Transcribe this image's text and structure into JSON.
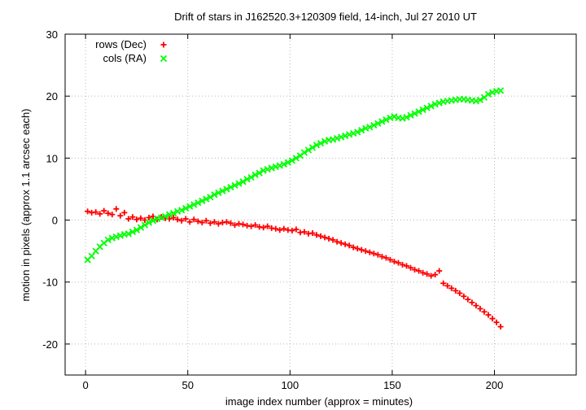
{
  "chart_data": {
    "type": "scatter",
    "title": "Drift of stars in J162520.3+120309 field, 14-inch, Jul 27 2010 UT",
    "xlabel": "image index number (approx = minutes)",
    "ylabel": "motion in pixels (approx 1.1 arcsec each)",
    "xlim": [
      -10,
      240
    ],
    "ylim": [
      -25,
      30
    ],
    "xticks": [
      0,
      50,
      100,
      150,
      200
    ],
    "yticks": [
      -20,
      -10,
      0,
      10,
      20,
      30
    ],
    "grid": true,
    "legend_position": "top-left",
    "series": [
      {
        "name": "rows (Dec)",
        "color": "#ff0000",
        "marker": "plus",
        "points": [
          [
            1,
            1.4
          ],
          [
            3,
            1.2
          ],
          [
            5,
            1.3
          ],
          [
            7,
            1.0
          ],
          [
            9,
            1.5
          ],
          [
            11,
            1.1
          ],
          [
            13,
            0.9
          ],
          [
            15,
            1.8
          ],
          [
            17,
            0.7
          ],
          [
            19,
            1.2
          ],
          [
            21,
            0.2
          ],
          [
            23,
            0.5
          ],
          [
            25,
            0.1
          ],
          [
            27,
            0.3
          ],
          [
            29,
            0.0
          ],
          [
            31,
            0.4
          ],
          [
            33,
            0.6
          ],
          [
            35,
            0.1
          ],
          [
            37,
            0.5
          ],
          [
            39,
            0.3
          ],
          [
            41,
            0.2
          ],
          [
            43,
            0.4
          ],
          [
            45,
            0.1
          ],
          [
            47,
            -0.1
          ],
          [
            49,
            0.2
          ],
          [
            51,
            -0.3
          ],
          [
            53,
            0.1
          ],
          [
            55,
            -0.2
          ],
          [
            57,
            -0.4
          ],
          [
            59,
            -0.1
          ],
          [
            61,
            -0.5
          ],
          [
            63,
            -0.3
          ],
          [
            65,
            -0.6
          ],
          [
            67,
            -0.4
          ],
          [
            69,
            -0.3
          ],
          [
            71,
            -0.5
          ],
          [
            73,
            -0.8
          ],
          [
            75,
            -0.6
          ],
          [
            77,
            -0.7
          ],
          [
            79,
            -0.9
          ],
          [
            81,
            -1.0
          ],
          [
            83,
            -0.8
          ],
          [
            85,
            -1.1
          ],
          [
            87,
            -1.2
          ],
          [
            89,
            -1.0
          ],
          [
            91,
            -1.3
          ],
          [
            93,
            -1.4
          ],
          [
            95,
            -1.6
          ],
          [
            97,
            -1.4
          ],
          [
            99,
            -1.6
          ],
          [
            101,
            -1.7
          ],
          [
            103,
            -1.5
          ],
          [
            105,
            -2.0
          ],
          [
            107,
            -1.9
          ],
          [
            109,
            -2.2
          ],
          [
            111,
            -2.1
          ],
          [
            113,
            -2.4
          ],
          [
            115,
            -2.6
          ],
          [
            117,
            -2.8
          ],
          [
            119,
            -3.0
          ],
          [
            121,
            -3.2
          ],
          [
            123,
            -3.5
          ],
          [
            125,
            -3.7
          ],
          [
            127,
            -3.9
          ],
          [
            129,
            -4.1
          ],
          [
            131,
            -4.4
          ],
          [
            133,
            -4.6
          ],
          [
            135,
            -4.8
          ],
          [
            137,
            -5.0
          ],
          [
            139,
            -5.2
          ],
          [
            141,
            -5.4
          ],
          [
            143,
            -5.6
          ],
          [
            145,
            -5.9
          ],
          [
            147,
            -6.1
          ],
          [
            149,
            -6.4
          ],
          [
            151,
            -6.7
          ],
          [
            153,
            -6.9
          ],
          [
            155,
            -7.2
          ],
          [
            157,
            -7.4
          ],
          [
            159,
            -7.7
          ],
          [
            161,
            -8.0
          ],
          [
            163,
            -8.2
          ],
          [
            165,
            -8.5
          ],
          [
            167,
            -8.7
          ],
          [
            169,
            -9.0
          ],
          [
            171,
            -8.8
          ],
          [
            173,
            -8.2
          ],
          [
            175,
            -10.2
          ],
          [
            177,
            -10.6
          ],
          [
            179,
            -11.0
          ],
          [
            181,
            -11.4
          ],
          [
            183,
            -11.8
          ],
          [
            185,
            -12.3
          ],
          [
            187,
            -12.8
          ],
          [
            189,
            -13.3
          ],
          [
            191,
            -13.8
          ],
          [
            193,
            -14.3
          ],
          [
            195,
            -14.8
          ],
          [
            197,
            -15.3
          ],
          [
            199,
            -15.9
          ],
          [
            201,
            -16.5
          ],
          [
            203,
            -17.2
          ]
        ]
      },
      {
        "name": "cols (RA)",
        "color": "#00ff00",
        "marker": "cross",
        "points": [
          [
            1,
            -6.4
          ],
          [
            3,
            -5.8
          ],
          [
            5,
            -5.0
          ],
          [
            7,
            -4.3
          ],
          [
            9,
            -3.7
          ],
          [
            11,
            -3.2
          ],
          [
            13,
            -2.9
          ],
          [
            15,
            -2.7
          ],
          [
            17,
            -2.5
          ],
          [
            19,
            -2.3
          ],
          [
            21,
            -2.2
          ],
          [
            23,
            -1.9
          ],
          [
            25,
            -1.6
          ],
          [
            27,
            -1.2
          ],
          [
            29,
            -0.8
          ],
          [
            31,
            -0.4
          ],
          [
            33,
            -0.1
          ],
          [
            35,
            0.2
          ],
          [
            37,
            0.4
          ],
          [
            39,
            0.6
          ],
          [
            41,
            0.9
          ],
          [
            43,
            1.1
          ],
          [
            45,
            1.4
          ],
          [
            47,
            1.6
          ],
          [
            49,
            1.9
          ],
          [
            51,
            2.2
          ],
          [
            53,
            2.5
          ],
          [
            55,
            2.8
          ],
          [
            57,
            3.1
          ],
          [
            59,
            3.4
          ],
          [
            61,
            3.7
          ],
          [
            63,
            4.1
          ],
          [
            65,
            4.4
          ],
          [
            67,
            4.7
          ],
          [
            69,
            5.0
          ],
          [
            71,
            5.3
          ],
          [
            73,
            5.6
          ],
          [
            75,
            5.9
          ],
          [
            77,
            6.2
          ],
          [
            79,
            6.6
          ],
          [
            81,
            6.9
          ],
          [
            83,
            7.3
          ],
          [
            85,
            7.6
          ],
          [
            87,
            8.0
          ],
          [
            89,
            8.2
          ],
          [
            91,
            8.4
          ],
          [
            93,
            8.6
          ],
          [
            95,
            8.8
          ],
          [
            97,
            9.0
          ],
          [
            99,
            9.3
          ],
          [
            101,
            9.6
          ],
          [
            103,
            10.0
          ],
          [
            105,
            10.4
          ],
          [
            107,
            10.9
          ],
          [
            109,
            11.3
          ],
          [
            111,
            11.7
          ],
          [
            113,
            12.1
          ],
          [
            115,
            12.4
          ],
          [
            117,
            12.7
          ],
          [
            119,
            12.9
          ],
          [
            121,
            13.0
          ],
          [
            123,
            13.2
          ],
          [
            125,
            13.4
          ],
          [
            127,
            13.6
          ],
          [
            129,
            13.8
          ],
          [
            131,
            14.0
          ],
          [
            133,
            14.2
          ],
          [
            135,
            14.5
          ],
          [
            137,
            14.8
          ],
          [
            139,
            15.0
          ],
          [
            141,
            15.3
          ],
          [
            143,
            15.6
          ],
          [
            145,
            15.9
          ],
          [
            147,
            16.2
          ],
          [
            149,
            16.5
          ],
          [
            151,
            16.7
          ],
          [
            153,
            16.5
          ],
          [
            155,
            16.4
          ],
          [
            157,
            16.6
          ],
          [
            159,
            16.9
          ],
          [
            161,
            17.2
          ],
          [
            163,
            17.5
          ],
          [
            165,
            17.8
          ],
          [
            167,
            18.1
          ],
          [
            169,
            18.4
          ],
          [
            171,
            18.7
          ],
          [
            173,
            18.9
          ],
          [
            175,
            19.1
          ],
          [
            177,
            19.2
          ],
          [
            179,
            19.3
          ],
          [
            181,
            19.4
          ],
          [
            183,
            19.5
          ],
          [
            185,
            19.5
          ],
          [
            187,
            19.4
          ],
          [
            189,
            19.3
          ],
          [
            191,
            19.2
          ],
          [
            193,
            19.4
          ],
          [
            195,
            19.8
          ],
          [
            197,
            20.3
          ],
          [
            199,
            20.6
          ],
          [
            201,
            20.8
          ],
          [
            203,
            20.9
          ]
        ]
      }
    ]
  }
}
